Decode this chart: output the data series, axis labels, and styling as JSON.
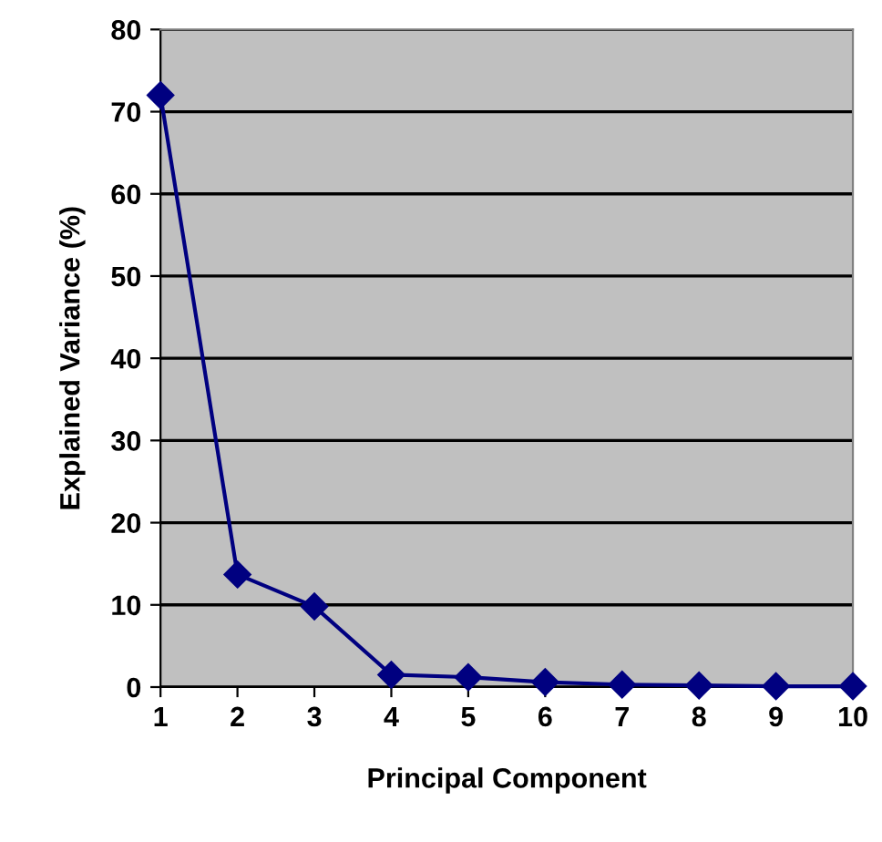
{
  "chart_data": {
    "type": "line",
    "xlabel": "Principal Component",
    "ylabel": "Explained Variance (%)",
    "categories": [
      "1",
      "2",
      "3",
      "4",
      "5",
      "6",
      "7",
      "8",
      "9",
      "10"
    ],
    "series": [
      {
        "color": "#000080",
        "values": [
          72,
          13.7,
          9.8,
          1.5,
          1.2,
          0.6,
          0.3,
          0.2,
          0.1,
          0.1
        ]
      }
    ],
    "ylim": [
      0,
      80
    ],
    "yticks": [
      0,
      10,
      20,
      30,
      40,
      50,
      60,
      70,
      80
    ],
    "grid": "y",
    "marker": "diamond",
    "line_style": "solid"
  }
}
